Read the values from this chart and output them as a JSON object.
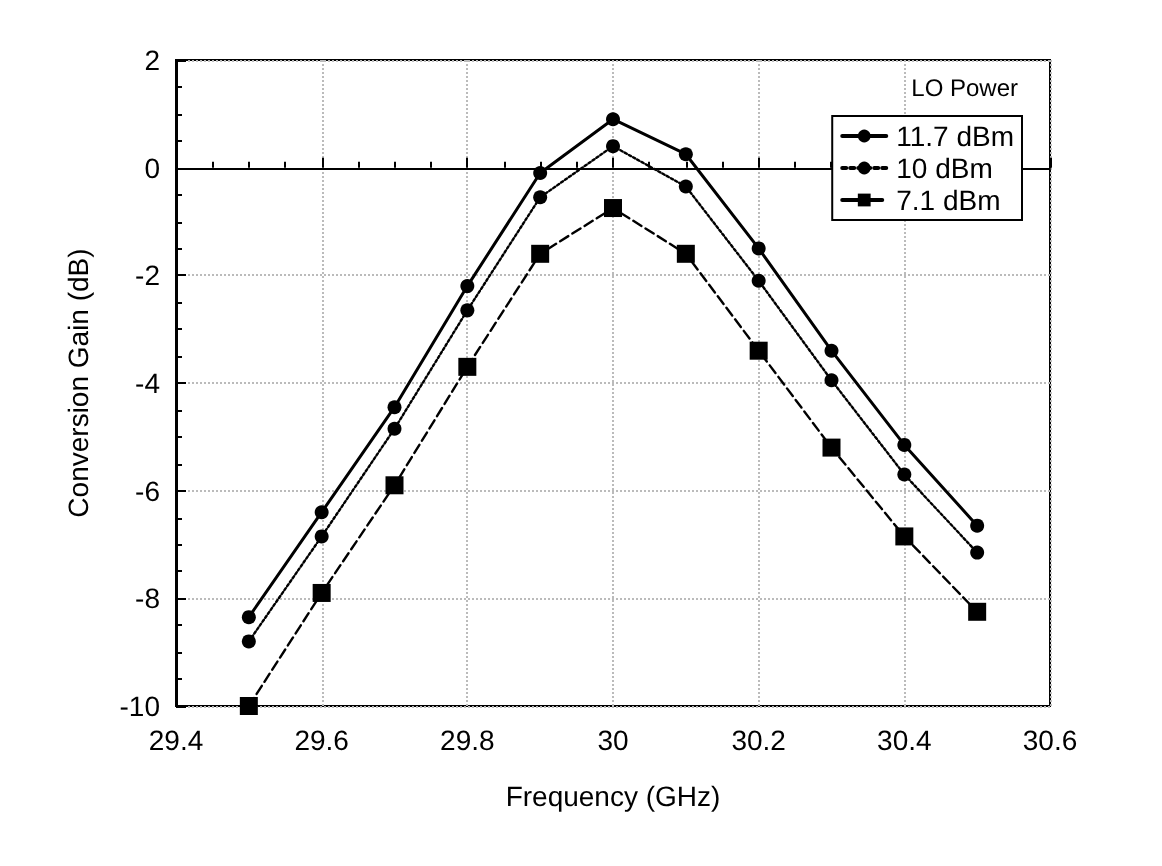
{
  "chart_data": {
    "type": "line",
    "xlabel": "Frequency (GHz)",
    "ylabel": "Conversion Gain (dB)",
    "legend_title": "LO Power",
    "legend": "top right",
    "grid": true,
    "x": [
      29.5,
      29.6,
      29.7,
      29.8,
      29.9,
      30,
      30.1,
      30.2,
      30.3,
      30.4,
      30.5
    ],
    "xlim": [
      29.4,
      30.6
    ],
    "xticks": [
      29.4,
      29.6,
      29.8,
      30,
      30.2,
      30.4,
      30.6
    ],
    "ylim": [
      -10,
      2
    ],
    "yticks": [
      -10,
      -8,
      -6,
      -4,
      -2,
      0,
      2
    ],
    "series": [
      {
        "name": "11.7 dBm",
        "color": "#000000",
        "marker": "circle",
        "line_style": "solid",
        "values": [
          -8.35,
          -6.4,
          -4.45,
          -2.2,
          -0.1,
          0.9,
          0.25,
          -1.5,
          -3.4,
          -5.15,
          -6.65
        ]
      },
      {
        "name": "10 dBm",
        "color": "#000000",
        "marker": "circle",
        "line_style": "dotted",
        "values": [
          -8.8,
          -6.85,
          -4.85,
          -2.65,
          -0.55,
          0.4,
          -0.35,
          -2.1,
          -3.95,
          -5.7,
          -7.15
        ]
      },
      {
        "name": "7.1 dBm",
        "color": "#000000",
        "marker": "square",
        "line_style": "dashed",
        "values": [
          -10,
          -7.9,
          -5.9,
          -3.7,
          -1.6,
          -0.75,
          -1.6,
          -3.4,
          -5.2,
          -6.85,
          -8.25
        ]
      }
    ]
  }
}
